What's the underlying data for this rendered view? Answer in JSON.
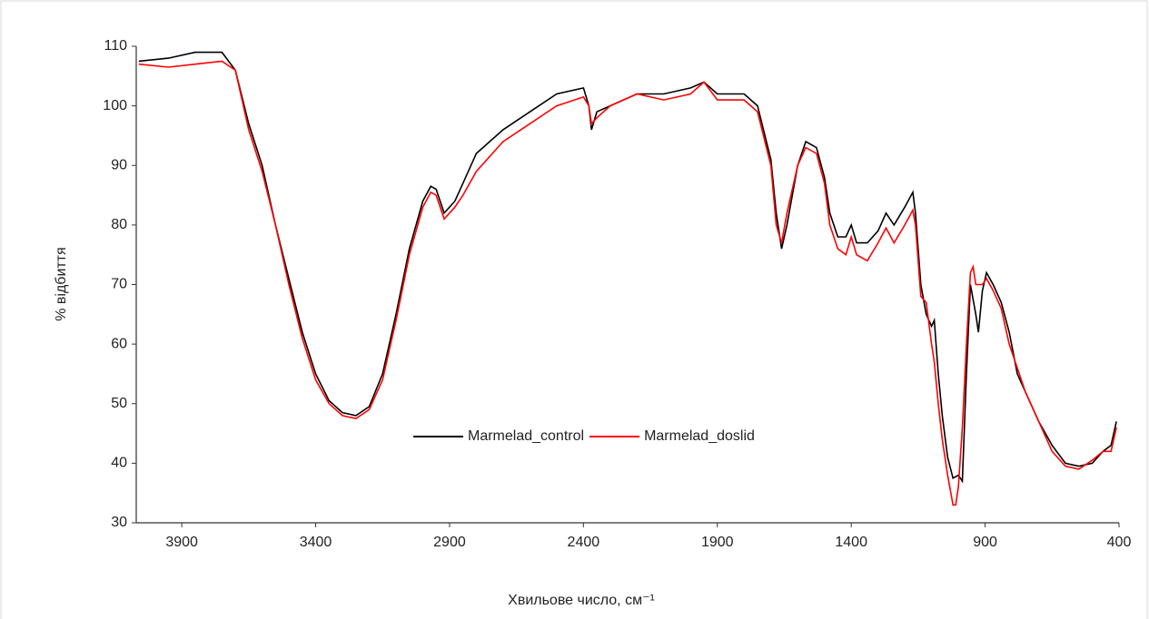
{
  "chart_data": {
    "type": "line",
    "xlabel": "Хвильове число, см⁻¹",
    "ylabel": "% відбиття",
    "xlim": [
      4070,
      400
    ],
    "ylim": [
      30,
      110
    ],
    "xticks": [
      3900,
      3400,
      2900,
      2400,
      1900,
      1400,
      900,
      400
    ],
    "yticks": [
      30,
      40,
      50,
      60,
      70,
      80,
      90,
      100,
      110
    ],
    "legend": "center",
    "series": [
      {
        "name": "Marmelad_control",
        "color": "#000000",
        "x": [
          4060,
          3950,
          3850,
          3750,
          3700,
          3650,
          3600,
          3550,
          3500,
          3450,
          3400,
          3350,
          3300,
          3250,
          3200,
          3150,
          3100,
          3050,
          3000,
          2970,
          2950,
          2920,
          2880,
          2850,
          2800,
          2700,
          2600,
          2500,
          2400,
          2380,
          2370,
          2350,
          2300,
          2200,
          2100,
          2000,
          1950,
          1900,
          1800,
          1750,
          1700,
          1680,
          1660,
          1640,
          1600,
          1570,
          1530,
          1500,
          1480,
          1450,
          1420,
          1400,
          1380,
          1340,
          1300,
          1270,
          1240,
          1200,
          1170,
          1160,
          1140,
          1120,
          1100,
          1090,
          1075,
          1060,
          1040,
          1020,
          1000,
          985,
          970,
          955,
          935,
          925,
          910,
          895,
          870,
          840,
          810,
          780,
          750,
          700,
          650,
          600,
          550,
          500,
          460,
          430,
          410
        ],
        "values": [
          107.5,
          108,
          109,
          109,
          106,
          97,
          90,
          80,
          71,
          62,
          55,
          50.5,
          48.5,
          48,
          49.5,
          55,
          65,
          76,
          84,
          86.5,
          86,
          82,
          84,
          87,
          92,
          96,
          99,
          102,
          103,
          100,
          96,
          99,
          100,
          102,
          102,
          103,
          104,
          102,
          102,
          100,
          91,
          82,
          76,
          80,
          90,
          94,
          93,
          88,
          82,
          78,
          78,
          80,
          77,
          77,
          79,
          82,
          80,
          83,
          85.5,
          82,
          70,
          65,
          63,
          64,
          55,
          48,
          41,
          37.5,
          38,
          37,
          55,
          70,
          65,
          62,
          69,
          72,
          70,
          67,
          62,
          55,
          52,
          47,
          43,
          40,
          39.5,
          40,
          42,
          43,
          47
        ]
      },
      {
        "name": "Marmelad_doslid",
        "color": "#ff0000",
        "x": [
          4060,
          3950,
          3850,
          3750,
          3700,
          3650,
          3600,
          3550,
          3500,
          3450,
          3400,
          3350,
          3300,
          3250,
          3200,
          3150,
          3100,
          3050,
          3000,
          2970,
          2950,
          2920,
          2880,
          2850,
          2800,
          2700,
          2600,
          2500,
          2400,
          2380,
          2370,
          2350,
          2300,
          2200,
          2100,
          2000,
          1950,
          1900,
          1800,
          1750,
          1700,
          1680,
          1660,
          1640,
          1600,
          1570,
          1530,
          1500,
          1480,
          1450,
          1420,
          1400,
          1380,
          1340,
          1300,
          1270,
          1240,
          1200,
          1170,
          1160,
          1140,
          1120,
          1100,
          1090,
          1075,
          1060,
          1040,
          1020,
          1010,
          1000,
          985,
          970,
          955,
          945,
          935,
          910,
          895,
          870,
          840,
          810,
          780,
          750,
          700,
          650,
          600,
          550,
          500,
          460,
          430,
          410
        ],
        "values": [
          107,
          106.5,
          107,
          107.5,
          106,
          96,
          89,
          80,
          70,
          61,
          54,
          50,
          48,
          47.5,
          49,
          54,
          64,
          75,
          83,
          85.5,
          85,
          81,
          83,
          85,
          89,
          94,
          97,
          100,
          101.5,
          100,
          97,
          98,
          100,
          102,
          101,
          102,
          104,
          101,
          101,
          99,
          90,
          80,
          77,
          82,
          90,
          93,
          92,
          87,
          80,
          76,
          75,
          78,
          75,
          74,
          77,
          79.5,
          77,
          80,
          82.5,
          80,
          68,
          67,
          60,
          57,
          50,
          44,
          38,
          33,
          33,
          36,
          46,
          60,
          72,
          73,
          70,
          70,
          71,
          69,
          66,
          60,
          56,
          52,
          47,
          42,
          39.5,
          39,
          40.5,
          42,
          42,
          46
        ]
      }
    ]
  }
}
